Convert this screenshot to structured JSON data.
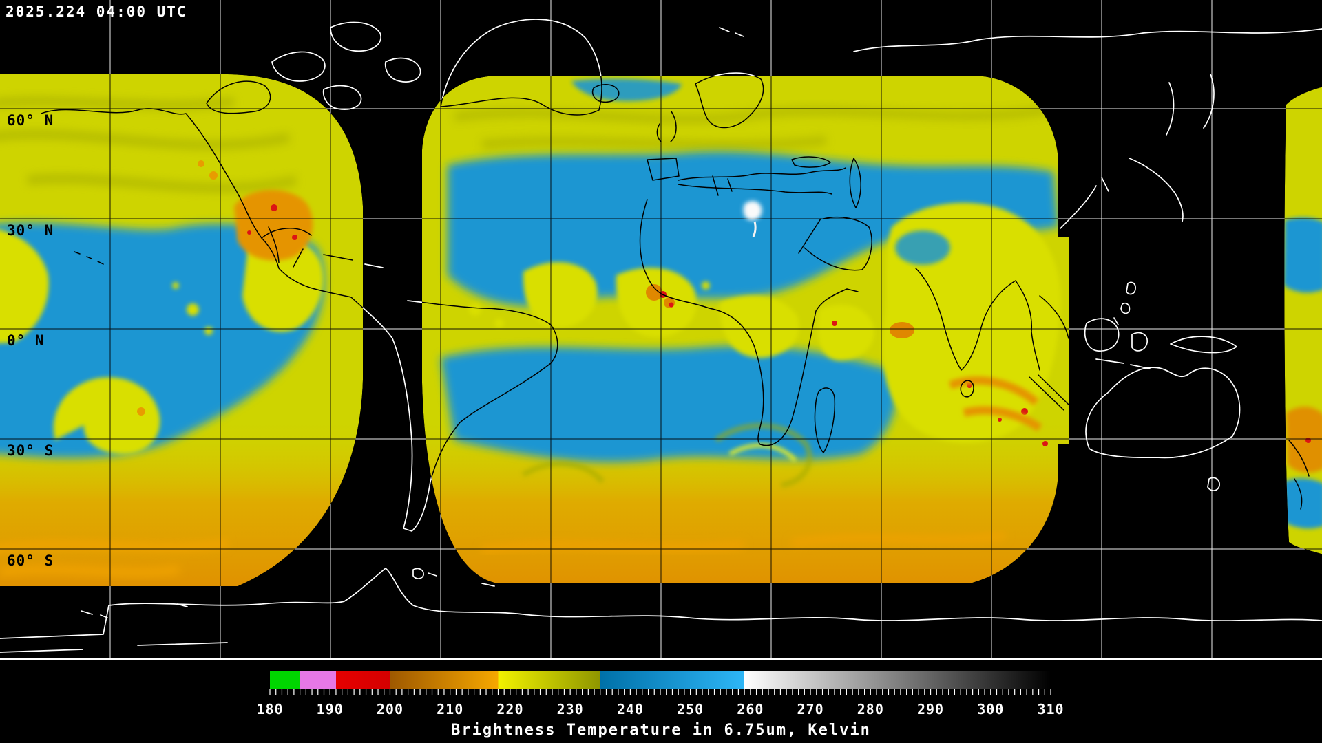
{
  "header": {
    "timestamp": "2025.224 04:00 UTC"
  },
  "map": {
    "latitude_labels": [
      "60° N",
      "30° N",
      "0° N",
      "30° S",
      "60° S"
    ],
    "grid_spacing_degrees": 30
  },
  "colorbar": {
    "caption": "Brightness Temperature in 6.75um, Kelvin",
    "min": 180,
    "max": 310,
    "major_tick_step": 10,
    "minor_tick_step": 1,
    "tick_labels": [
      "180",
      "190",
      "200",
      "210",
      "220",
      "230",
      "240",
      "250",
      "260",
      "270",
      "280",
      "290",
      "300",
      "310"
    ],
    "segments": [
      {
        "from": 180,
        "to": 185,
        "start": "#00d600",
        "end": "#00d600"
      },
      {
        "from": 185,
        "to": 191,
        "start": "#e678e6",
        "end": "#e678e6"
      },
      {
        "from": 191,
        "to": 200,
        "start": "#e60000",
        "end": "#d40000"
      },
      {
        "from": 200,
        "to": 218,
        "start": "#9e5800",
        "end": "#f6a800"
      },
      {
        "from": 218,
        "to": 235,
        "start": "#f2f200",
        "end": "#8f9600"
      },
      {
        "from": 235,
        "to": 259,
        "start": "#0070a8",
        "end": "#2eb6f6"
      },
      {
        "from": 259,
        "to": 310,
        "start": "#ffffff",
        "end": "#000000"
      }
    ]
  },
  "chart_data": {
    "type": "heatmap",
    "title": "Brightness Temperature in 6.75um, Kelvin",
    "timestamp": "2025.224 04:00 UTC",
    "value_units": "Kelvin",
    "value_range": [
      180,
      310
    ],
    "colorbar_ticks": [
      180,
      190,
      200,
      210,
      220,
      230,
      240,
      250,
      260,
      270,
      280,
      290,
      300,
      310
    ],
    "palette_segments": [
      {
        "from": 180,
        "to": 185,
        "color": "green"
      },
      {
        "from": 185,
        "to": 191,
        "color": "violet"
      },
      {
        "from": 191,
        "to": 200,
        "color": "red"
      },
      {
        "from": 200,
        "to": 218,
        "color": "dark-orange to orange"
      },
      {
        "from": 218,
        "to": 235,
        "color": "yellow to olive"
      },
      {
        "from": 235,
        "to": 259,
        "color": "blue to light-blue"
      },
      {
        "from": 259,
        "to": 310,
        "color": "white to black"
      }
    ],
    "latitude_gridlines": [
      "60° N",
      "30° N",
      "0° N",
      "30° S",
      "60° S"
    ],
    "grid_spacing_degrees": 30,
    "legend_position": "bottom-center",
    "notes": "Global composite of geostationary water-vapor imagery; three satellite footprints visible over black background with white coastlines"
  }
}
